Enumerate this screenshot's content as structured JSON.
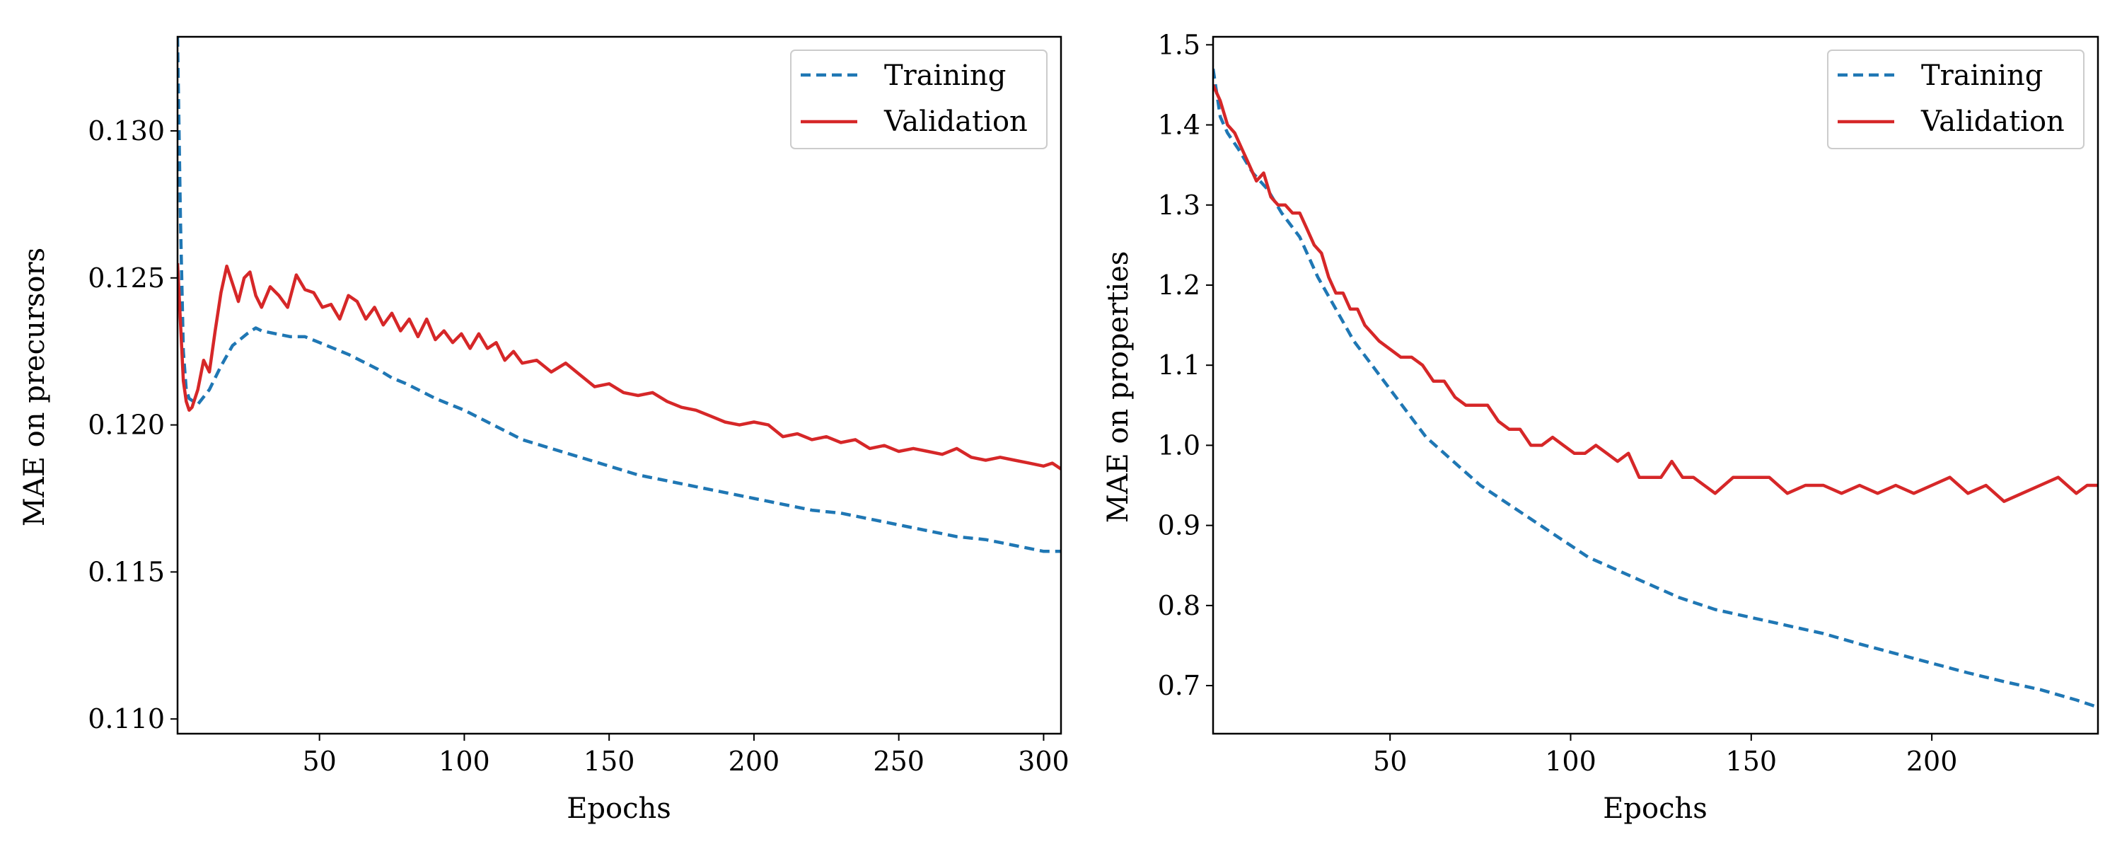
{
  "chart_data": [
    {
      "type": "line",
      "title": "",
      "xlabel": "Epochs",
      "ylabel": "MAE on precursors",
      "xlim": [
        1,
        306
      ],
      "ylim": [
        0.1095,
        0.1332
      ],
      "xticks": [
        50,
        100,
        150,
        200,
        250,
        300
      ],
      "xtick_labels": [
        "50",
        "100",
        "150",
        "200",
        "250",
        "300"
      ],
      "yticks": [
        0.11,
        0.115,
        0.12,
        0.125,
        0.13
      ],
      "ytick_labels": [
        "0.110",
        "0.115",
        "0.120",
        "0.125",
        "0.130"
      ],
      "grid": false,
      "legend_position": "top-right",
      "series": [
        {
          "name": "Training",
          "style": "dashed",
          "color": "#1f77b4",
          "x": [
            1,
            2,
            3,
            4,
            5,
            8,
            12,
            16,
            20,
            25,
            28,
            30,
            35,
            40,
            45,
            50,
            60,
            70,
            75,
            80,
            90,
            100,
            110,
            120,
            130,
            140,
            150,
            160,
            170,
            180,
            190,
            200,
            210,
            220,
            230,
            240,
            250,
            260,
            270,
            280,
            290,
            300,
            306
          ],
          "y": [
            0.1332,
            0.127,
            0.1225,
            0.1212,
            0.1209,
            0.1207,
            0.1212,
            0.122,
            0.1227,
            0.1231,
            0.1233,
            0.1232,
            0.1231,
            0.123,
            0.123,
            0.1228,
            0.1224,
            0.1219,
            0.1216,
            0.1214,
            0.1209,
            0.1205,
            0.12,
            0.1195,
            0.1192,
            0.1189,
            0.1186,
            0.1183,
            0.1181,
            0.1179,
            0.1177,
            0.1175,
            0.1173,
            0.1171,
            0.117,
            0.1168,
            0.1166,
            0.1164,
            0.1162,
            0.1161,
            0.1159,
            0.1157,
            0.1157
          ]
        },
        {
          "name": "Validation",
          "style": "solid",
          "color": "#d62728",
          "x": [
            1,
            2,
            3,
            4,
            5,
            6,
            8,
            10,
            12,
            14,
            16,
            18,
            20,
            22,
            24,
            26,
            28,
            30,
            33,
            36,
            39,
            42,
            45,
            48,
            51,
            54,
            57,
            60,
            63,
            66,
            69,
            72,
            75,
            78,
            81,
            84,
            87,
            90,
            93,
            96,
            99,
            102,
            105,
            108,
            111,
            114,
            117,
            120,
            125,
            130,
            135,
            140,
            145,
            150,
            155,
            160,
            165,
            170,
            175,
            180,
            185,
            190,
            195,
            200,
            205,
            210,
            215,
            220,
            225,
            230,
            235,
            240,
            245,
            250,
            255,
            260,
            265,
            270,
            275,
            280,
            285,
            290,
            295,
            300,
            303,
            306
          ],
          "y": [
            0.1255,
            0.1235,
            0.1215,
            0.1208,
            0.1205,
            0.1206,
            0.1212,
            0.1222,
            0.1218,
            0.1232,
            0.1245,
            0.1254,
            0.1248,
            0.1242,
            0.125,
            0.1252,
            0.1244,
            0.124,
            0.1247,
            0.1244,
            0.124,
            0.1251,
            0.1246,
            0.1245,
            0.124,
            0.1241,
            0.1236,
            0.1244,
            0.1242,
            0.1236,
            0.124,
            0.1234,
            0.1238,
            0.1232,
            0.1236,
            0.123,
            0.1236,
            0.1229,
            0.1232,
            0.1228,
            0.1231,
            0.1226,
            0.1231,
            0.1226,
            0.1228,
            0.1222,
            0.1225,
            0.1221,
            0.1222,
            0.1218,
            0.1221,
            0.1217,
            0.1213,
            0.1214,
            0.1211,
            0.121,
            0.1211,
            0.1208,
            0.1206,
            0.1205,
            0.1203,
            0.1201,
            0.12,
            0.1201,
            0.12,
            0.1196,
            0.1197,
            0.1195,
            0.1196,
            0.1194,
            0.1195,
            0.1192,
            0.1193,
            0.1191,
            0.1192,
            0.1191,
            0.119,
            0.1192,
            0.1189,
            0.1188,
            0.1189,
            0.1188,
            0.1187,
            0.1186,
            0.1187,
            0.1185
          ]
        }
      ]
    },
    {
      "type": "line",
      "title": "",
      "xlabel": "Epochs",
      "ylabel": "MAE on properties",
      "xlim": [
        1,
        246
      ],
      "ylim": [
        0.64,
        1.51
      ],
      "xticks": [
        50,
        100,
        150,
        200
      ],
      "xtick_labels": [
        "50",
        "100",
        "150",
        "200"
      ],
      "yticks": [
        0.7,
        0.8,
        0.9,
        1.0,
        1.1,
        1.2,
        1.3,
        1.4,
        1.5
      ],
      "ytick_labels": [
        "0.7",
        "0.8",
        "0.9",
        "1.0",
        "1.1",
        "1.2",
        "1.3",
        "1.4",
        "1.5"
      ],
      "grid": false,
      "legend_position": "top-right",
      "series": [
        {
          "name": "Training",
          "style": "dashed",
          "color": "#1f77b4",
          "x": [
            1,
            3,
            5,
            8,
            12,
            16,
            20,
            25,
            30,
            35,
            40,
            45,
            50,
            55,
            60,
            65,
            70,
            75,
            80,
            85,
            90,
            95,
            100,
            105,
            110,
            115,
            120,
            125,
            130,
            140,
            150,
            160,
            170,
            180,
            190,
            200,
            210,
            220,
            230,
            240,
            246
          ],
          "y": [
            1.47,
            1.41,
            1.39,
            1.37,
            1.34,
            1.32,
            1.29,
            1.26,
            1.21,
            1.17,
            1.13,
            1.1,
            1.07,
            1.04,
            1.01,
            0.99,
            0.97,
            0.95,
            0.935,
            0.92,
            0.905,
            0.89,
            0.875,
            0.86,
            0.85,
            0.84,
            0.83,
            0.82,
            0.81,
            0.795,
            0.785,
            0.775,
            0.765,
            0.752,
            0.74,
            0.728,
            0.716,
            0.705,
            0.695,
            0.682,
            0.673
          ]
        },
        {
          "name": "Validation",
          "style": "solid",
          "color": "#d62728",
          "x": [
            1,
            3,
            5,
            7,
            9,
            11,
            13,
            15,
            17,
            19,
            21,
            23,
            25,
            27,
            29,
            31,
            33,
            35,
            37,
            39,
            41,
            43,
            45,
            47,
            50,
            53,
            56,
            59,
            62,
            65,
            68,
            71,
            74,
            77,
            80,
            83,
            86,
            89,
            92,
            95,
            98,
            101,
            104,
            107,
            110,
            113,
            116,
            119,
            122,
            125,
            128,
            131,
            134,
            137,
            140,
            145,
            150,
            155,
            160,
            165,
            170,
            175,
            180,
            185,
            190,
            195,
            200,
            205,
            210,
            215,
            220,
            225,
            230,
            235,
            240,
            243,
            246
          ],
          "y": [
            1.45,
            1.43,
            1.4,
            1.39,
            1.37,
            1.35,
            1.33,
            1.34,
            1.31,
            1.3,
            1.3,
            1.29,
            1.29,
            1.27,
            1.25,
            1.24,
            1.21,
            1.19,
            1.19,
            1.17,
            1.17,
            1.15,
            1.14,
            1.13,
            1.12,
            1.11,
            1.11,
            1.1,
            1.08,
            1.08,
            1.06,
            1.05,
            1.05,
            1.05,
            1.03,
            1.02,
            1.02,
            1.0,
            1.0,
            1.01,
            1.0,
            0.99,
            0.99,
            1.0,
            0.99,
            0.98,
            0.99,
            0.96,
            0.96,
            0.96,
            0.98,
            0.96,
            0.96,
            0.95,
            0.94,
            0.96,
            0.96,
            0.96,
            0.94,
            0.95,
            0.95,
            0.94,
            0.95,
            0.94,
            0.95,
            0.94,
            0.95,
            0.96,
            0.94,
            0.95,
            0.93,
            0.94,
            0.95,
            0.96,
            0.94,
            0.95,
            0.95
          ]
        }
      ]
    }
  ]
}
